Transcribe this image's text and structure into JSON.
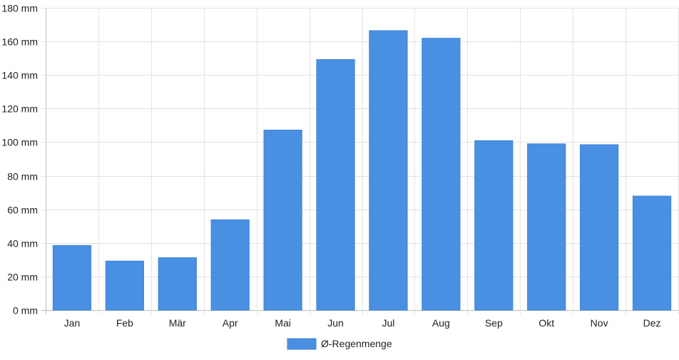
{
  "chart_data": {
    "type": "bar",
    "categories": [
      "Jan",
      "Feb",
      "Mär",
      "Apr",
      "Mai",
      "Jun",
      "Jul",
      "Aug",
      "Sep",
      "Okt",
      "Nov",
      "Dez"
    ],
    "series": [
      {
        "name": "Ø-Regenmenge",
        "color": "#4a90e2",
        "values": [
          38.5,
          29.2,
          31.2,
          53.8,
          107.2,
          149.2,
          166.4,
          161.9,
          100.9,
          99.0,
          98.5,
          67.9
        ]
      }
    ],
    "y_unit": "mm",
    "yticks": [
      "0 mm",
      "20 mm",
      "40 mm",
      "60 mm",
      "80 mm",
      "100 mm",
      "120 mm",
      "140 mm",
      "160 mm",
      "180 mm"
    ],
    "ylim": [
      0,
      180
    ],
    "grid": true,
    "legend_position": "bottom"
  }
}
